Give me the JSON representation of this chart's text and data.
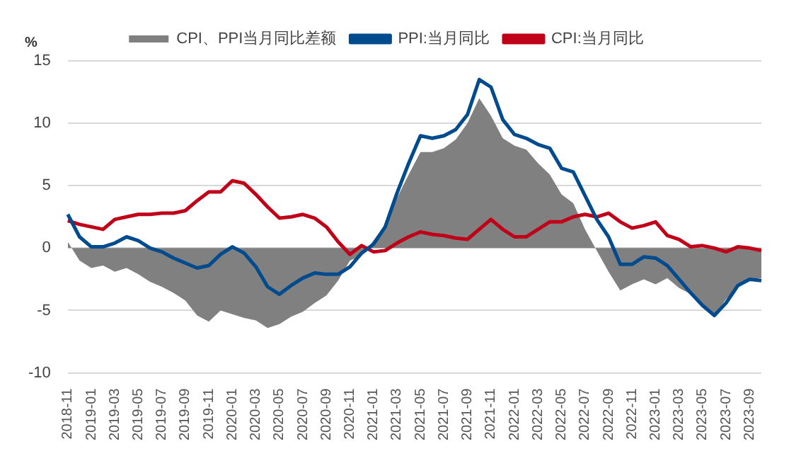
{
  "chart_data": {
    "type": "line",
    "ylabel": "%",
    "categories": [
      "2018-11",
      null,
      "2019-01",
      null,
      "2019-03",
      null,
      "2019-05",
      null,
      "2019-07",
      null,
      "2019-09",
      null,
      "2019-11",
      null,
      "2020-01",
      null,
      "2020-03",
      null,
      "2020-05",
      null,
      "2020-07",
      null,
      "2020-09",
      null,
      "2020-11",
      null,
      "2021-01",
      null,
      "2021-03",
      null,
      "2021-05",
      null,
      "2021-07",
      null,
      "2021-09",
      null,
      "2021-11",
      null,
      "2022-01",
      null,
      "2022-03",
      null,
      "2022-05",
      null,
      "2022-07",
      null,
      "2022-09",
      null,
      "2022-11",
      null,
      "2023-01",
      null,
      "2023-03",
      null,
      "2023-05",
      null,
      "2023-07",
      null,
      "2023-09",
      null
    ],
    "series": [
      {
        "name": "CPI、PPI当月同比差额",
        "type": "area",
        "color": "#808080",
        "values": [
          0.5,
          -1.0,
          -1.6,
          -1.4,
          -1.9,
          -1.6,
          -2.1,
          -2.7,
          -3.1,
          -3.6,
          -4.2,
          -5.4,
          -5.9,
          -5.0,
          -5.3,
          -5.6,
          -5.8,
          -6.4,
          -6.1,
          -5.5,
          -5.1,
          -4.4,
          -3.8,
          -2.6,
          -1.0,
          -0.6,
          0.6,
          1.9,
          4.0,
          5.9,
          7.7,
          7.7,
          8.0,
          8.7,
          10.0,
          12.0,
          10.6,
          8.8,
          8.2,
          7.9,
          6.8,
          5.9,
          4.3,
          3.6,
          1.5,
          -0.2,
          -1.9,
          -3.4,
          -2.9,
          -2.5,
          -2.9,
          -2.4,
          -3.2,
          -3.7,
          -4.8,
          -5.4,
          -4.1,
          -3.1,
          -2.5,
          -2.4
        ]
      },
      {
        "name": "PPI:当月同比",
        "type": "line",
        "color": "#004b8d",
        "values": [
          2.7,
          0.9,
          0.1,
          0.1,
          0.4,
          0.9,
          0.6,
          0.0,
          -0.3,
          -0.8,
          -1.2,
          -1.6,
          -1.4,
          -0.5,
          0.1,
          -0.4,
          -1.5,
          -3.1,
          -3.7,
          -3.0,
          -2.4,
          -2.0,
          -2.1,
          -2.1,
          -1.5,
          -0.4,
          0.3,
          1.7,
          4.4,
          6.8,
          9.0,
          8.8,
          9.0,
          9.5,
          10.7,
          13.5,
          12.9,
          10.3,
          9.1,
          8.8,
          8.3,
          8.0,
          6.4,
          6.1,
          4.2,
          2.3,
          0.9,
          -1.3,
          -1.3,
          -0.7,
          -0.8,
          -1.4,
          -2.5,
          -3.6,
          -4.6,
          -5.4,
          -4.4,
          -3.0,
          -2.5,
          -2.6
        ]
      },
      {
        "name": "CPI:当月同比",
        "type": "line",
        "color": "#c00018",
        "values": [
          2.2,
          1.9,
          1.7,
          1.5,
          2.3,
          2.5,
          2.7,
          2.7,
          2.8,
          2.8,
          3.0,
          3.8,
          4.5,
          4.5,
          5.4,
          5.2,
          4.3,
          3.3,
          2.4,
          2.5,
          2.7,
          2.4,
          1.7,
          0.5,
          -0.5,
          0.2,
          -0.3,
          -0.2,
          0.4,
          0.9,
          1.3,
          1.1,
          1.0,
          0.8,
          0.7,
          1.5,
          2.3,
          1.5,
          0.9,
          0.9,
          1.5,
          2.1,
          2.1,
          2.5,
          2.7,
          2.5,
          2.8,
          2.1,
          1.6,
          1.8,
          2.1,
          1.0,
          0.7,
          0.1,
          0.2,
          0.0,
          -0.3,
          0.1,
          0.0,
          -0.2
        ]
      }
    ],
    "ylim": [
      -10,
      15
    ],
    "yticks": [
      -10,
      -5,
      0,
      5,
      10,
      15
    ],
    "grid": "y",
    "legend": "top",
    "marker": "none"
  }
}
